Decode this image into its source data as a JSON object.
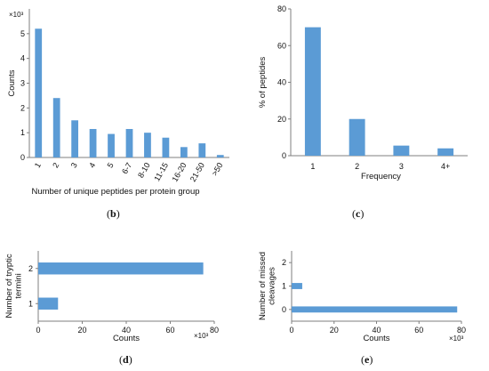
{
  "panel_labels": {
    "b": "b",
    "c": "c",
    "d": "d",
    "e": "e"
  },
  "chart_data": [
    {
      "id": "b",
      "type": "bar",
      "orientation": "vertical",
      "categories": [
        "1",
        "2",
        "3",
        "4",
        "5",
        "6-7",
        "8-10",
        "11-15",
        "16-20",
        "21-50",
        ">50"
      ],
      "values": [
        5.2,
        2.4,
        1.5,
        1.15,
        0.95,
        1.15,
        1.0,
        0.8,
        0.42,
        0.57,
        0.1
      ],
      "xlabel": "Number of unique peptides per protein group",
      "ylabel": "Counts",
      "multiplier": "×10³",
      "ylim": [
        0,
        6
      ],
      "yticks": [
        "0",
        "1",
        "2",
        "3",
        "4",
        "5"
      ],
      "color": "#5b9bd5"
    },
    {
      "id": "c",
      "type": "bar",
      "orientation": "vertical",
      "categories": [
        "1",
        "2",
        "3",
        "4+"
      ],
      "values": [
        70,
        20,
        5.5,
        4
      ],
      "xlabel": "Frequency",
      "ylabel": "% of peptides",
      "ylim": [
        0,
        80
      ],
      "yticks": [
        "0",
        "20",
        "40",
        "60",
        "80"
      ],
      "color": "#5b9bd5"
    },
    {
      "id": "d",
      "type": "bar",
      "orientation": "horizontal",
      "categories": [
        "1",
        "2"
      ],
      "values": [
        9,
        75
      ],
      "xlabel": "Counts",
      "ylabel": "Number of tryptic termini",
      "multiplier": "×10³",
      "xlim": [
        0,
        80
      ],
      "xticks": [
        "0",
        "20",
        "40",
        "60",
        "80"
      ],
      "color": "#5b9bd5"
    },
    {
      "id": "e",
      "type": "bar",
      "orientation": "horizontal",
      "categories": [
        "0",
        "1",
        "2"
      ],
      "values": [
        78,
        5,
        0
      ],
      "xlabel": "Counts",
      "ylabel": "Number of missed cleavages",
      "multiplier": "×10³",
      "xlim": [
        0,
        80
      ],
      "xticks": [
        "0",
        "20",
        "40",
        "60",
        "80"
      ],
      "color": "#5b9bd5"
    }
  ]
}
